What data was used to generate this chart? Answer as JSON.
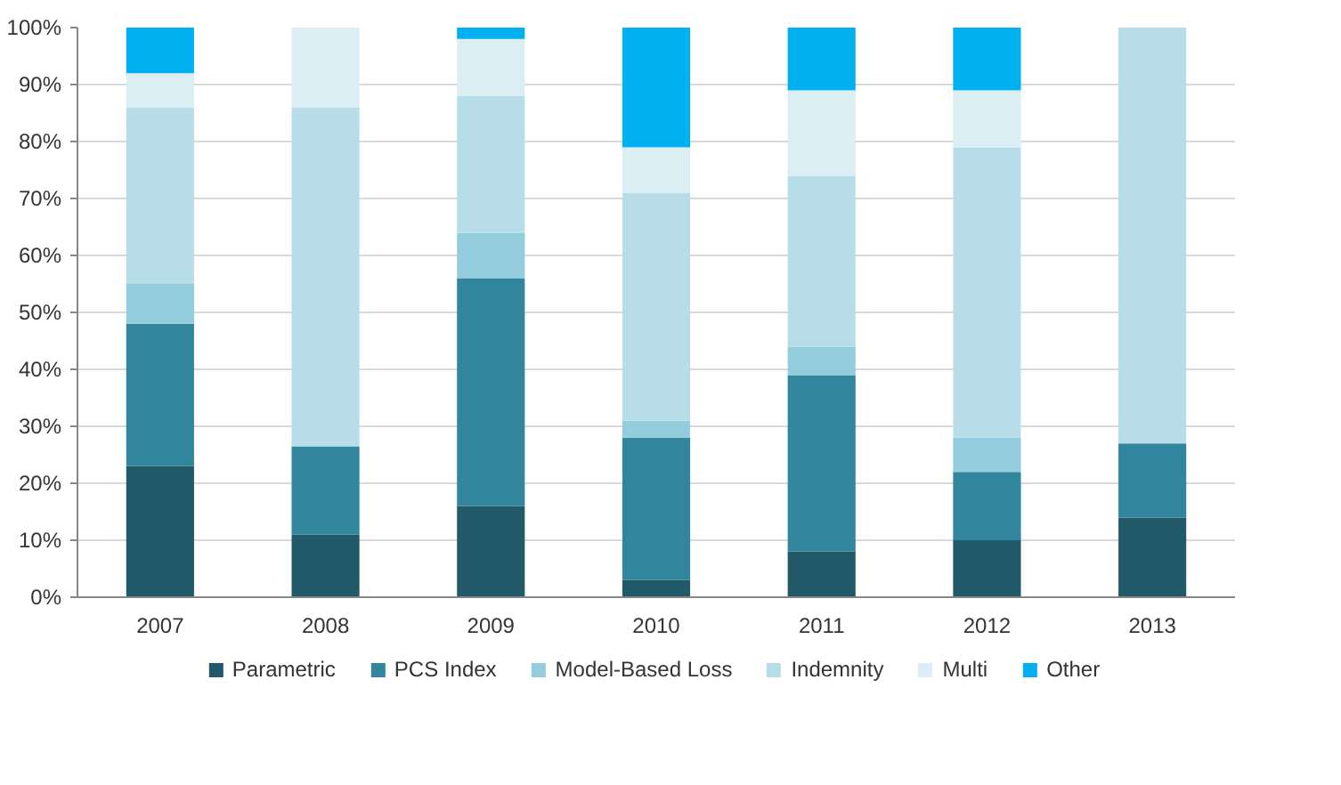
{
  "chart_data": {
    "type": "bar",
    "stacked": true,
    "categories": [
      "2007",
      "2008",
      "2009",
      "2010",
      "2011",
      "2012",
      "2013"
    ],
    "series": [
      {
        "name": "Parametric",
        "color": "#215968",
        "values": [
          23,
          11,
          16,
          3,
          8,
          10,
          14
        ]
      },
      {
        "name": "PCS Index",
        "color": "#31859c",
        "values": [
          25,
          15.5,
          40,
          25,
          31,
          12,
          13
        ]
      },
      {
        "name": "Model-Based Loss",
        "color": "#93cddd",
        "values": [
          7,
          0,
          8,
          3,
          5,
          6,
          0
        ]
      },
      {
        "name": "Indemnity",
        "color": "#b7dee8",
        "values": [
          31,
          59.5,
          24,
          40,
          30,
          51,
          73
        ]
      },
      {
        "name": "Multi",
        "color": "#daeef3",
        "values": [
          6,
          14,
          10,
          8,
          15,
          10,
          0
        ]
      },
      {
        "name": "Other",
        "color": "#00b0f0",
        "values": [
          8,
          0,
          2,
          21,
          11,
          11,
          0
        ]
      }
    ],
    "ylim": [
      0,
      100
    ],
    "yticks": [
      {
        "value": 0,
        "label": "0%"
      },
      {
        "value": 10,
        "label": "10%"
      },
      {
        "value": 20,
        "label": "20%"
      },
      {
        "value": 30,
        "label": "30%"
      },
      {
        "value": 40,
        "label": "40%"
      },
      {
        "value": 50,
        "label": "50%"
      },
      {
        "value": 60,
        "label": "60%"
      },
      {
        "value": 70,
        "label": "70%"
      },
      {
        "value": 80,
        "label": "80%"
      },
      {
        "value": 90,
        "label": "90%"
      },
      {
        "value": 100,
        "label": "100%"
      }
    ],
    "grid": "y",
    "legend": "bottom"
  }
}
